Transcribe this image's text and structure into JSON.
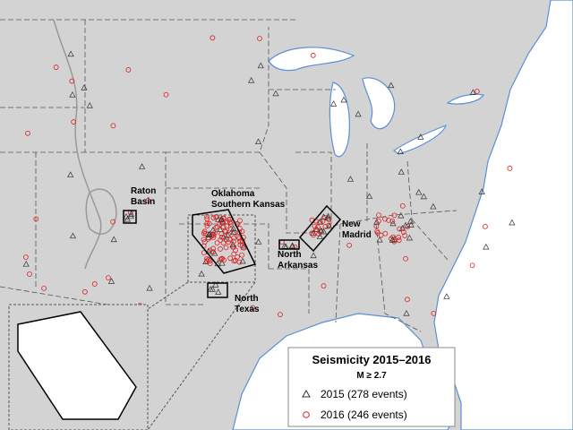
{
  "regions": [
    {
      "lines": [
        "Raton",
        "Basin"
      ]
    },
    {
      "lines": [
        "Oklahoma",
        "Southern Kansas"
      ]
    },
    {
      "lines": [
        "New",
        "Madrid"
      ]
    },
    {
      "lines": [
        "North",
        "Arkansas"
      ]
    },
    {
      "lines": [
        "North",
        "Texas"
      ]
    }
  ],
  "legend": {
    "title": "Seismicity 2015–2016",
    "subtitle": "M ≥ 2.7",
    "entries": [
      "2015 (278 events)",
      "2016 (246 events)"
    ]
  }
}
